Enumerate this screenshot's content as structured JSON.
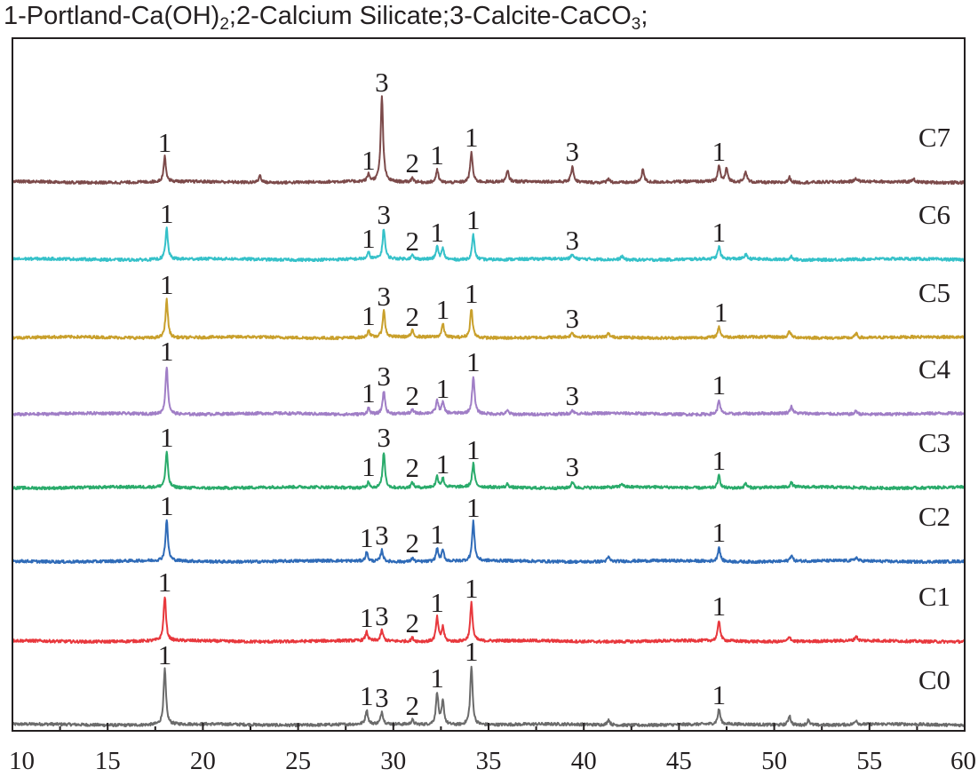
{
  "chart_data": {
    "type": "line",
    "title_parts": [
      {
        "text": "1-Portland-Ca(OH)"
      },
      {
        "text": "2",
        "sub": true
      },
      {
        "text": ";2-Calcium Silicate;3-Calcite-CaCO"
      },
      {
        "text": "3",
        "sub": true
      },
      {
        "text": ";"
      }
    ],
    "xlabel": "",
    "ylabel": "",
    "xlim": [
      10,
      60
    ],
    "x_ticks": [
      "10",
      "15",
      "20",
      "25",
      "30",
      "35",
      "40",
      "45",
      "50",
      "55",
      "60"
    ],
    "peak_legend": {
      "1": "Portland-Ca(OH)2",
      "2": "Calcium Silicate",
      "3": "Calcite-CaCO3"
    },
    "series": [
      {
        "name": "C0",
        "color": "#6b6b6b",
        "peaks": [
          [
            18.0,
            62
          ],
          [
            28.6,
            16
          ],
          [
            29.4,
            14
          ],
          [
            31.0,
            5
          ],
          [
            32.3,
            36
          ],
          [
            32.6,
            26
          ],
          [
            34.1,
            66
          ],
          [
            41.3,
            6
          ],
          [
            47.1,
            17
          ],
          [
            50.8,
            11
          ],
          [
            51.8,
            6
          ],
          [
            54.3,
            5
          ]
        ],
        "labels": [
          [
            18.0,
            "1"
          ],
          [
            28.6,
            "1"
          ],
          [
            29.4,
            "3"
          ],
          [
            31.0,
            "2"
          ],
          [
            32.3,
            "1"
          ],
          [
            34.1,
            "1"
          ],
          [
            47.1,
            "1"
          ]
        ]
      },
      {
        "name": "C1",
        "color": "#e8383d",
        "peaks": [
          [
            18.0,
            50
          ],
          [
            28.6,
            10
          ],
          [
            29.4,
            12
          ],
          [
            31.0,
            4
          ],
          [
            32.3,
            27
          ],
          [
            32.6,
            16
          ],
          [
            34.1,
            43
          ],
          [
            47.1,
            23
          ],
          [
            50.8,
            6
          ],
          [
            54.3,
            5
          ]
        ],
        "labels": [
          [
            18.0,
            "1"
          ],
          [
            28.6,
            "1"
          ],
          [
            29.4,
            "3"
          ],
          [
            31.0,
            "2"
          ],
          [
            32.3,
            "1"
          ],
          [
            34.1,
            "1"
          ],
          [
            47.1,
            "1"
          ]
        ]
      },
      {
        "name": "C2",
        "color": "#2f6bb8",
        "peaks": [
          [
            18.1,
            46
          ],
          [
            28.6,
            10
          ],
          [
            29.4,
            13
          ],
          [
            31.0,
            4
          ],
          [
            32.3,
            14
          ],
          [
            32.6,
            12
          ],
          [
            34.2,
            44
          ],
          [
            41.3,
            5
          ],
          [
            47.1,
            16
          ],
          [
            50.9,
            7
          ],
          [
            54.3,
            4
          ]
        ],
        "labels": [
          [
            18.1,
            "1"
          ],
          [
            28.6,
            "1"
          ],
          [
            29.4,
            "3"
          ],
          [
            31.0,
            "2"
          ],
          [
            32.3,
            "1"
          ],
          [
            34.2,
            "1"
          ],
          [
            47.1,
            "1"
          ]
        ]
      },
      {
        "name": "C3",
        "color": "#2aab6b",
        "peaks": [
          [
            18.1,
            40
          ],
          [
            28.7,
            7
          ],
          [
            29.5,
            40
          ],
          [
            31.0,
            6
          ],
          [
            32.3,
            12
          ],
          [
            32.6,
            10
          ],
          [
            34.2,
            26
          ],
          [
            36.0,
            4
          ],
          [
            39.4,
            7
          ],
          [
            42.0,
            4
          ],
          [
            47.1,
            14
          ],
          [
            48.5,
            5
          ],
          [
            50.9,
            5
          ]
        ],
        "labels": [
          [
            18.1,
            "1"
          ],
          [
            28.7,
            "1"
          ],
          [
            29.5,
            "3"
          ],
          [
            31.0,
            "2"
          ],
          [
            32.6,
            "1"
          ],
          [
            34.2,
            "1"
          ],
          [
            39.4,
            "3"
          ],
          [
            47.1,
            "1"
          ]
        ]
      },
      {
        "name": "C4",
        "color": "#a07ec6",
        "peaks": [
          [
            18.1,
            54
          ],
          [
            28.7,
            7
          ],
          [
            29.5,
            26
          ],
          [
            31.0,
            4
          ],
          [
            32.3,
            14
          ],
          [
            32.6,
            12
          ],
          [
            34.2,
            42
          ],
          [
            36.0,
            4
          ],
          [
            39.4,
            4
          ],
          [
            47.1,
            16
          ],
          [
            50.9,
            8
          ],
          [
            54.3,
            4
          ]
        ],
        "labels": [
          [
            18.1,
            "1"
          ],
          [
            28.7,
            "1"
          ],
          [
            29.5,
            "3"
          ],
          [
            31.0,
            "2"
          ],
          [
            32.6,
            "1"
          ],
          [
            34.2,
            "1"
          ],
          [
            39.4,
            "3"
          ],
          [
            47.1,
            "1"
          ]
        ]
      },
      {
        "name": "C5",
        "color": "#c9a02c",
        "peaks": [
          [
            18.1,
            43
          ],
          [
            28.7,
            8
          ],
          [
            29.5,
            30
          ],
          [
            31.0,
            7
          ],
          [
            32.6,
            15
          ],
          [
            34.1,
            33
          ],
          [
            39.4,
            5
          ],
          [
            41.3,
            4
          ],
          [
            47.1,
            12
          ],
          [
            50.8,
            7
          ],
          [
            54.3,
            5
          ]
        ],
        "labels": [
          [
            18.1,
            "1"
          ],
          [
            28.7,
            "1"
          ],
          [
            29.5,
            "3"
          ],
          [
            31.0,
            "2"
          ],
          [
            32.6,
            "1"
          ],
          [
            34.1,
            "1"
          ],
          [
            39.4,
            "3"
          ],
          [
            47.2,
            "1"
          ]
        ]
      },
      {
        "name": "C6",
        "color": "#35c1c9",
        "peaks": [
          [
            18.1,
            35
          ],
          [
            28.7,
            7
          ],
          [
            29.5,
            34
          ],
          [
            31.0,
            4
          ],
          [
            32.3,
            14
          ],
          [
            32.6,
            12
          ],
          [
            34.2,
            28
          ],
          [
            39.4,
            5
          ],
          [
            42.0,
            4
          ],
          [
            47.1,
            14
          ],
          [
            48.5,
            5
          ],
          [
            50.9,
            4
          ]
        ],
        "labels": [
          [
            18.1,
            "1"
          ],
          [
            28.7,
            "1"
          ],
          [
            29.5,
            "3"
          ],
          [
            31.0,
            "2"
          ],
          [
            32.3,
            "1"
          ],
          [
            34.2,
            "1"
          ],
          [
            39.4,
            "3"
          ],
          [
            47.1,
            "1"
          ]
        ]
      },
      {
        "name": "C7",
        "color": "#7c4a4a",
        "peaks": [
          [
            18.0,
            28
          ],
          [
            23.0,
            8
          ],
          [
            28.7,
            8
          ],
          [
            29.4,
            96
          ],
          [
            31.0,
            5
          ],
          [
            32.3,
            14
          ],
          [
            34.1,
            34
          ],
          [
            36.0,
            12
          ],
          [
            39.4,
            18
          ],
          [
            41.3,
            5
          ],
          [
            43.1,
            15
          ],
          [
            47.1,
            18
          ],
          [
            47.5,
            15
          ],
          [
            48.5,
            12
          ],
          [
            50.8,
            6
          ],
          [
            54.3,
            4
          ],
          [
            57.3,
            4
          ]
        ],
        "labels": [
          [
            18.0,
            "1"
          ],
          [
            28.7,
            "1"
          ],
          [
            29.4,
            "3"
          ],
          [
            31.0,
            "2"
          ],
          [
            32.3,
            "1"
          ],
          [
            34.1,
            "1"
          ],
          [
            39.4,
            "3"
          ],
          [
            47.1,
            "1"
          ]
        ]
      }
    ]
  }
}
